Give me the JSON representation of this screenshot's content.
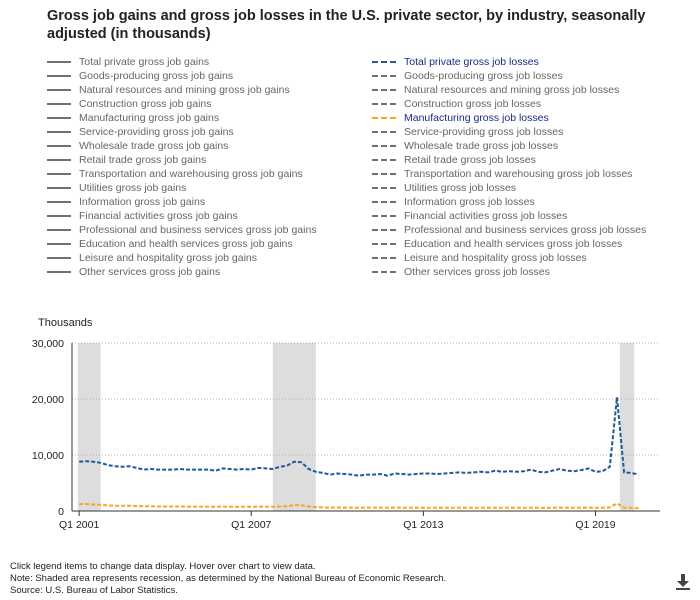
{
  "chart_data": {
    "type": "line",
    "title": "Gross job gains and gross job losses in the U.S. private sector, by industry, seasonally adjusted (in thousands)",
    "ylabel": "Thousands",
    "ylim": [
      0,
      30000
    ],
    "yticks": [
      0,
      10000,
      20000,
      30000
    ],
    "ytick_labels": [
      "0",
      "10,000",
      "20,000",
      "30,000"
    ],
    "x_start": 2001.0,
    "quarters_per_year": 4,
    "xlim": [
      2000.75,
      2021.25
    ],
    "xticks": [
      2001.0,
      2007.0,
      2013.0,
      2019.0
    ],
    "xtick_labels": [
      "Q1 2001",
      "Q1 2007",
      "Q1 2013",
      "Q1 2019"
    ],
    "recessions": [
      [
        2000.95,
        2001.75
      ],
      [
        2007.75,
        2009.25
      ],
      [
        2019.85,
        2020.35
      ]
    ],
    "legend_left": [
      "Total private gross job gains",
      "Goods-producing gross job gains",
      "Natural resources and mining gross job gains",
      "Construction gross job gains",
      "Manufacturing gross job gains",
      "Service-providing gross job gains",
      "Wholesale trade gross job gains",
      "Retail trade gross job gains",
      "Transportation and warehousing gross job gains",
      "Utilities gross job gains",
      "Information gross job gains",
      "Financial activities gross job gains",
      "Professional and business services gross job gains",
      "Education and health services gross job gains",
      "Leisure and hospitality gross job gains",
      "Other services gross job gains"
    ],
    "legend_right": [
      "Total private gross job losses",
      "Goods-producing gross job losses",
      "Natural resources and mining gross job losses",
      "Construction gross job losses",
      "Manufacturing gross job losses",
      "Service-providing gross job losses",
      "Wholesale trade gross job losses",
      "Retail trade gross job losses",
      "Transportation and warehousing gross job losses",
      "Utilities gross job losses",
      "Information gross job losses",
      "Financial activities gross job losses",
      "Professional and business services gross job losses",
      "Education and health services gross job losses",
      "Leisure and hospitality gross job losses",
      "Other services gross job losses"
    ],
    "active_legend": [
      "Total private gross job losses",
      "Manufacturing gross job losses"
    ],
    "series": [
      {
        "name": "Total private gross job losses",
        "color": "#1f5a96",
        "values": [
          8800,
          8900,
          8800,
          8600,
          8200,
          8000,
          7900,
          8000,
          7700,
          7400,
          7500,
          7400,
          7400,
          7400,
          7500,
          7400,
          7400,
          7400,
          7400,
          7200,
          7600,
          7500,
          7400,
          7500,
          7400,
          7700,
          7600,
          7500,
          7900,
          8100,
          8800,
          8700,
          7500,
          7000,
          6800,
          6500,
          6700,
          6600,
          6500,
          6300,
          6500,
          6500,
          6600,
          6300,
          6700,
          6600,
          6500,
          6600,
          6700,
          6700,
          6600,
          6700,
          6800,
          6900,
          6800,
          6900,
          7000,
          6900,
          7200,
          7000,
          7100,
          7000,
          7100,
          7400,
          7000,
          6900,
          7200,
          7500,
          7200,
          7100,
          7300,
          7600,
          7000,
          7100,
          7900,
          20300,
          6900,
          6800,
          6500
        ]
      },
      {
        "name": "Manufacturing gross job losses",
        "color": "#f5a623",
        "values": [
          1200,
          1250,
          1150,
          1100,
          1000,
          950,
          950,
          950,
          900,
          850,
          850,
          800,
          800,
          800,
          800,
          780,
          780,
          780,
          760,
          750,
          780,
          760,
          740,
          760,
          740,
          780,
          760,
          750,
          800,
          850,
          1050,
          1000,
          800,
          700,
          650,
          600,
          620,
          610,
          600,
          580,
          600,
          600,
          600,
          580,
          600,
          590,
          580,
          590,
          580,
          580,
          570,
          580,
          580,
          580,
          570,
          580,
          580,
          570,
          580,
          570,
          580,
          570,
          580,
          590,
          570,
          560,
          580,
          600,
          580,
          570,
          580,
          600,
          560,
          580,
          650,
          1350,
          600,
          550,
          500
        ]
      }
    ]
  },
  "notes": [
    "Click legend items to change data display. Hover over chart to view data.",
    "Note: Shaded area represents recession, as determined by the National Bureau of Economic Research.",
    "Source: U.S. Bureau of Labor Statistics."
  ],
  "download_icon": "download-icon"
}
